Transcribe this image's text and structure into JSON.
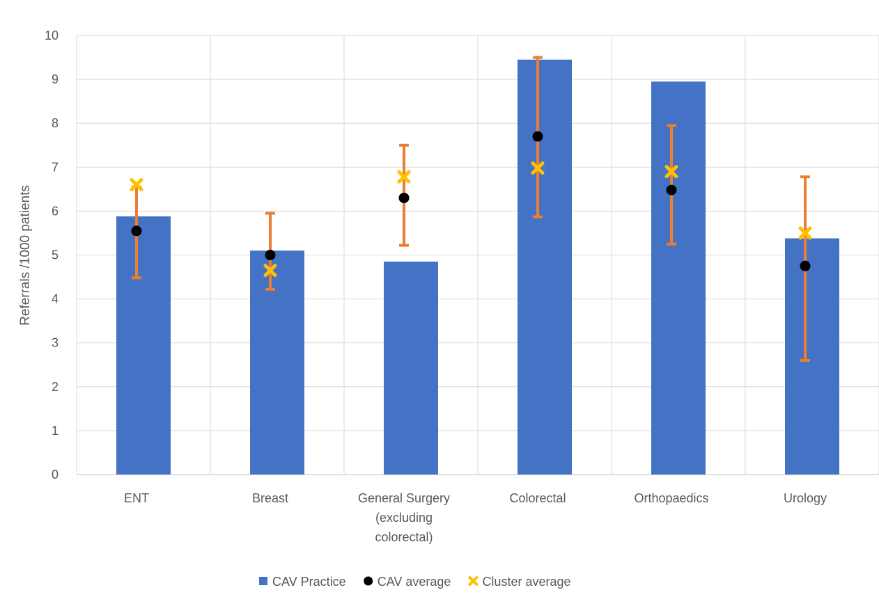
{
  "chart_data": {
    "type": "bar",
    "title": "",
    "xlabel": "",
    "ylabel": "Referrals /1000 patients",
    "ylim": [
      0,
      10
    ],
    "yticks": [
      0,
      1,
      2,
      3,
      4,
      5,
      6,
      7,
      8,
      9,
      10
    ],
    "grid": true,
    "legend_position": "bottom",
    "categories": [
      [
        "ENT"
      ],
      [
        "Breast"
      ],
      [
        "General Surgery",
        "(excluding",
        "colorectal)"
      ],
      [
        "Colorectal"
      ],
      [
        "Orthopaedics"
      ],
      [
        "Urology"
      ]
    ],
    "series": [
      {
        "name": "CAV Practice",
        "type": "bar",
        "color": "#4472C4",
        "values": [
          5.88,
          5.1,
          4.85,
          9.45,
          8.95,
          5.38
        ]
      },
      {
        "name": "CAV average",
        "type": "marker",
        "marker": "circle",
        "color": "#000000",
        "values": [
          5.55,
          5.0,
          6.3,
          7.7,
          6.48,
          4.75
        ],
        "error_bars": {
          "color": "#ED7D31",
          "low": [
            4.48,
            4.22,
            5.22,
            5.87,
            5.25,
            2.6
          ],
          "high": [
            6.55,
            5.95,
            7.5,
            9.5,
            7.95,
            6.78
          ]
        }
      },
      {
        "name": "Cluster average",
        "type": "marker",
        "marker": "x",
        "color": "#FFC000",
        "values": [
          6.6,
          4.65,
          6.78,
          6.98,
          6.9,
          5.5
        ]
      }
    ]
  }
}
